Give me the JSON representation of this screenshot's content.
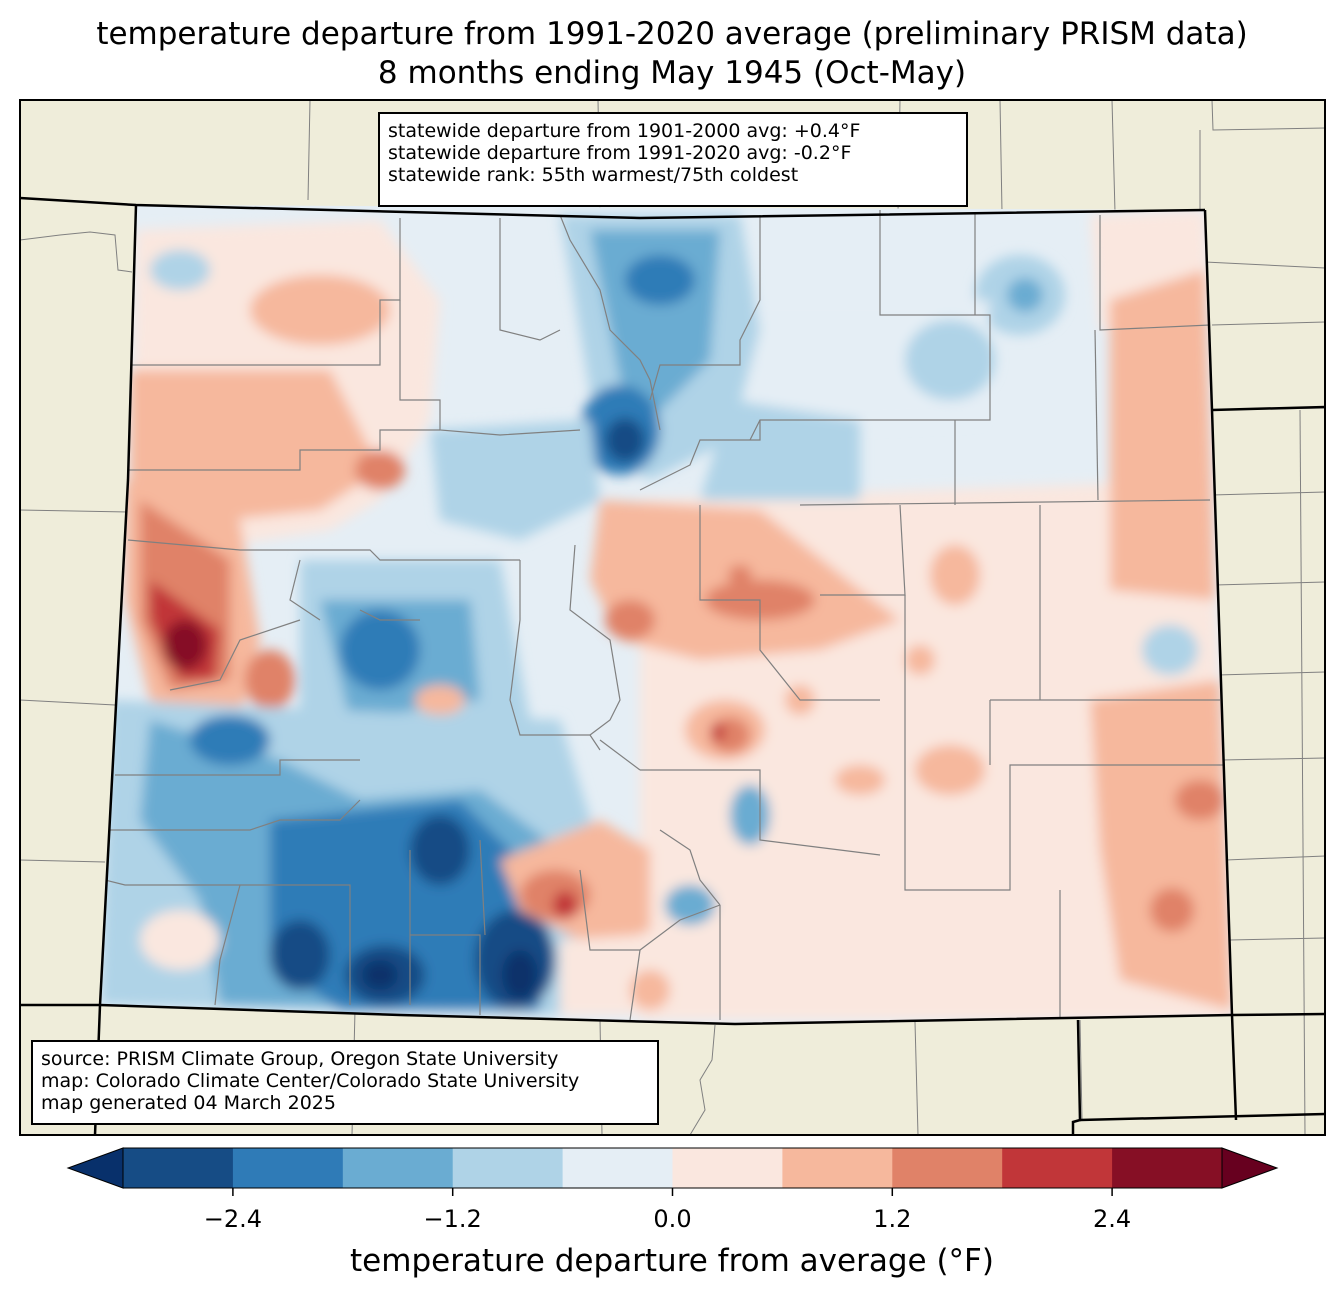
{
  "title": {
    "line1": "temperature departure from 1991-2020 average (preliminary PRISM data)",
    "line2": "8 months ending May 1945 (Oct-May)"
  },
  "stats": {
    "line1": "statewide departure from 1901-2000 avg: +0.4°F",
    "line2": "statewide departure from 1991-2020 avg: -0.2°F",
    "line3": "statewide rank: 55th warmest/75th coldest"
  },
  "source": {
    "line1": "source: PRISM Climate Group, Oregon State University",
    "line2": "map: Colorado Climate Center/Colorado State University",
    "line3": "map generated 04 March 2025"
  },
  "colorbar": {
    "title": "temperature departure from average (°F)",
    "ticks": [
      "−2.4",
      "−1.2",
      "0.0",
      "1.2",
      "2.4"
    ],
    "colors": [
      "#08306b",
      "#164c85",
      "#2f7bb7",
      "#6aacd2",
      "#afd3e7",
      "#e5eef5",
      "#fae7df",
      "#f6b89d",
      "#e08268",
      "#c13639",
      "#860f25",
      "#67001f"
    ]
  },
  "colors": {
    "land": "#efedda",
    "state_border": "#000000",
    "county_border": "#808080"
  }
}
